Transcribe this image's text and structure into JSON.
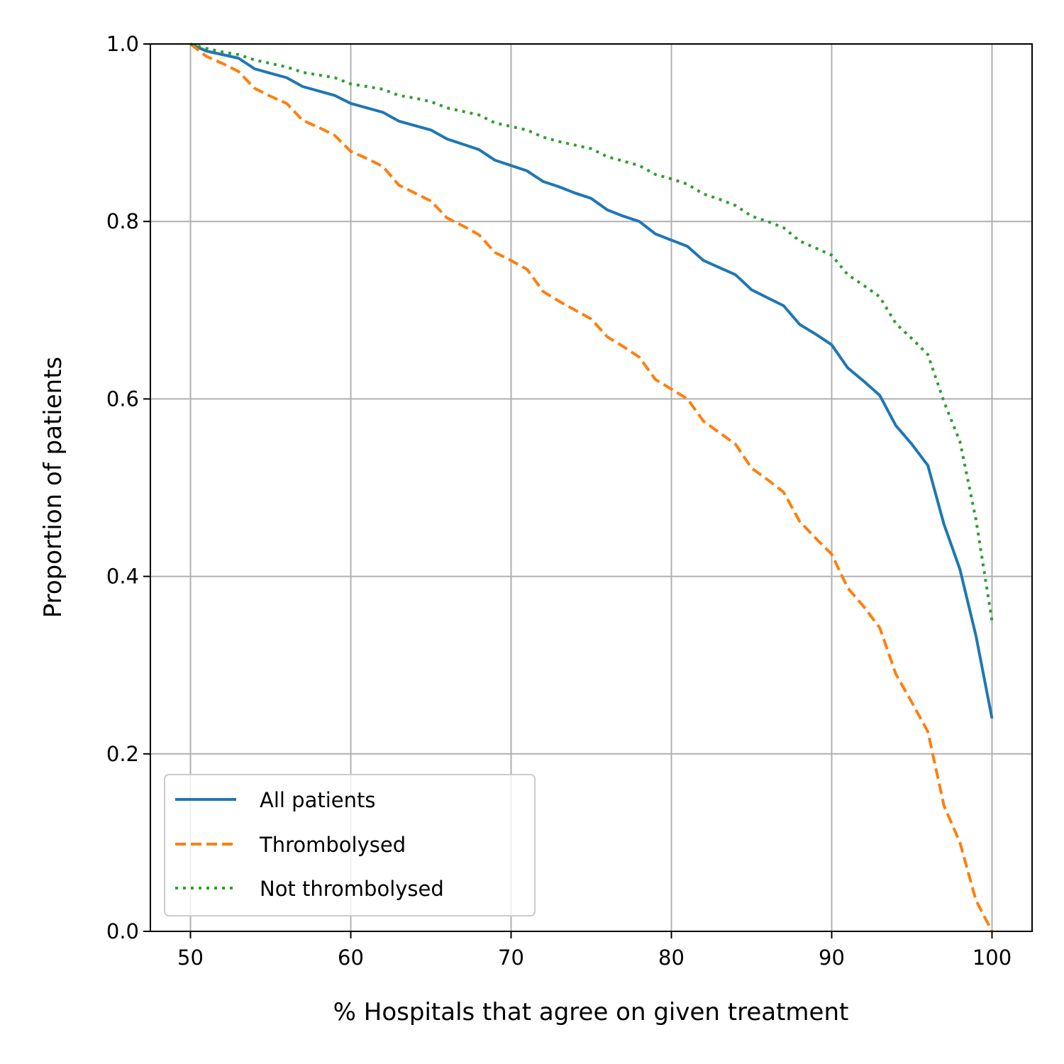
{
  "chart_data": {
    "type": "line",
    "title": "",
    "xlabel": "% Hospitals that agree on given treatment",
    "ylabel": "Proportion of patients",
    "xlim": [
      47.5,
      102.5
    ],
    "ylim": [
      0.0,
      1.0
    ],
    "xticks": [
      50,
      60,
      70,
      80,
      90,
      100
    ],
    "yticks": [
      0.0,
      0.2,
      0.4,
      0.6,
      0.8,
      1.0
    ],
    "xtick_labels": [
      "50",
      "60",
      "70",
      "80",
      "90",
      "100"
    ],
    "ytick_labels": [
      "0.0",
      "0.2",
      "0.4",
      "0.6",
      "0.8",
      "1.0"
    ],
    "grid": true,
    "legend_position": "lower-left",
    "series": [
      {
        "name": "All patients",
        "color": "#1f77b4",
        "style": "solid",
        "x": [
          50,
          51,
          52,
          53,
          54,
          55,
          56,
          57,
          58,
          59,
          60,
          61,
          62,
          63,
          64,
          65,
          66,
          67,
          68,
          69,
          70,
          71,
          72,
          73,
          74,
          75,
          76,
          77,
          78,
          79,
          80,
          81,
          82,
          83,
          84,
          85,
          86,
          87,
          88,
          89,
          90,
          91,
          92,
          93,
          94,
          95,
          96,
          97,
          98,
          99,
          100
        ],
        "y": [
          1.0,
          0.992,
          0.988,
          0.984,
          0.972,
          0.967,
          0.962,
          0.952,
          0.947,
          0.942,
          0.933,
          0.928,
          0.923,
          0.913,
          0.908,
          0.903,
          0.893,
          0.887,
          0.881,
          0.869,
          0.863,
          0.857,
          0.845,
          0.839,
          0.832,
          0.826,
          0.813,
          0.806,
          0.8,
          0.786,
          0.779,
          0.772,
          0.756,
          0.748,
          0.74,
          0.723,
          0.714,
          0.705,
          0.684,
          0.673,
          0.661,
          0.635,
          0.62,
          0.604,
          0.57,
          0.549,
          0.525,
          0.459,
          0.408,
          0.333,
          0.24
        ]
      },
      {
        "name": "Thrombolysed",
        "color": "#ff7f0e",
        "style": "dashed",
        "x": [
          50,
          51,
          52,
          53,
          54,
          55,
          56,
          57,
          58,
          59,
          60,
          61,
          62,
          63,
          64,
          65,
          66,
          67,
          68,
          69,
          70,
          71,
          72,
          73,
          74,
          75,
          76,
          77,
          78,
          79,
          80,
          81,
          82,
          83,
          84,
          85,
          86,
          87,
          88,
          89,
          90,
          91,
          92,
          93,
          94,
          95,
          96,
          97,
          98,
          99,
          100
        ],
        "y": [
          1.0,
          0.986,
          0.978,
          0.969,
          0.95,
          0.941,
          0.933,
          0.914,
          0.906,
          0.897,
          0.879,
          0.871,
          0.862,
          0.841,
          0.832,
          0.823,
          0.804,
          0.795,
          0.785,
          0.765,
          0.756,
          0.746,
          0.721,
          0.71,
          0.7,
          0.69,
          0.67,
          0.659,
          0.647,
          0.622,
          0.611,
          0.6,
          0.575,
          0.562,
          0.549,
          0.522,
          0.509,
          0.495,
          0.462,
          0.443,
          0.425,
          0.387,
          0.366,
          0.342,
          0.29,
          0.258,
          0.225,
          0.142,
          0.1,
          0.035,
          0.0
        ]
      },
      {
        "name": "Not thrombolysed",
        "color": "#2ca02c",
        "style": "dotted",
        "x": [
          50,
          51,
          52,
          53,
          54,
          55,
          56,
          57,
          58,
          59,
          60,
          61,
          62,
          63,
          64,
          65,
          66,
          67,
          68,
          69,
          70,
          71,
          72,
          73,
          74,
          75,
          76,
          77,
          78,
          79,
          80,
          81,
          82,
          83,
          84,
          85,
          86,
          87,
          88,
          89,
          90,
          91,
          92,
          93,
          94,
          95,
          96,
          97,
          98,
          99,
          100
        ],
        "y": [
          1.0,
          0.995,
          0.991,
          0.988,
          0.982,
          0.978,
          0.974,
          0.968,
          0.965,
          0.962,
          0.955,
          0.952,
          0.949,
          0.942,
          0.939,
          0.935,
          0.928,
          0.924,
          0.92,
          0.911,
          0.907,
          0.903,
          0.895,
          0.89,
          0.886,
          0.882,
          0.873,
          0.868,
          0.863,
          0.853,
          0.848,
          0.842,
          0.831,
          0.825,
          0.818,
          0.806,
          0.8,
          0.793,
          0.778,
          0.77,
          0.762,
          0.74,
          0.728,
          0.715,
          0.685,
          0.668,
          0.65,
          0.597,
          0.552,
          0.464,
          0.35
        ]
      }
    ]
  }
}
